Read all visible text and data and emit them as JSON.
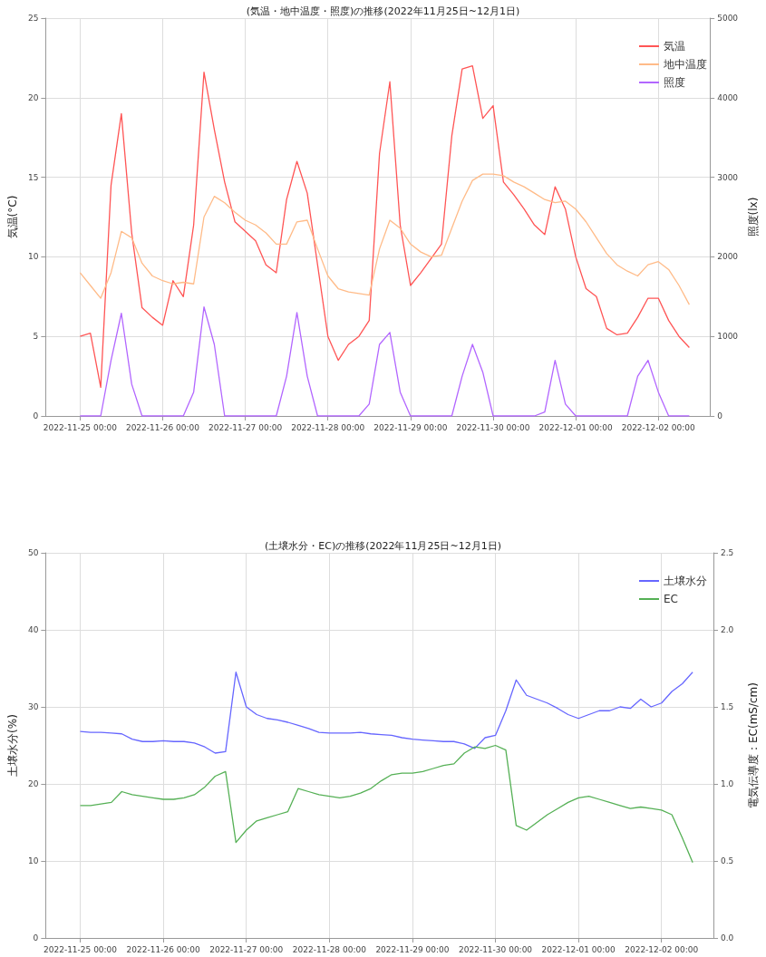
{
  "chart_data": [
    {
      "type": "line",
      "title": "(気温・地中温度・照度)の推移(2022年11月25日~12月1日)",
      "ylabel": "気温(°C)",
      "y2label": "照度(lx)",
      "legend": "top right",
      "grid": true,
      "x": [
        "2022-11-25T00:00",
        "2022-11-25T03:00",
        "2022-11-25T06:00",
        "2022-11-25T09:00",
        "2022-11-25T12:00",
        "2022-11-25T15:00",
        "2022-11-25T18:00",
        "2022-11-25T21:00",
        "2022-11-26T00:00",
        "2022-11-26T03:00",
        "2022-11-26T06:00",
        "2022-11-26T09:00",
        "2022-11-26T12:00",
        "2022-11-26T15:00",
        "2022-11-26T18:00",
        "2022-11-26T21:00",
        "2022-11-27T00:00",
        "2022-11-27T03:00",
        "2022-11-27T06:00",
        "2022-11-27T09:00",
        "2022-11-27T12:00",
        "2022-11-27T15:00",
        "2022-11-27T18:00",
        "2022-11-27T21:00",
        "2022-11-28T00:00",
        "2022-11-28T03:00",
        "2022-11-28T06:00",
        "2022-11-28T09:00",
        "2022-11-28T12:00",
        "2022-11-28T15:00",
        "2022-11-28T18:00",
        "2022-11-28T21:00",
        "2022-11-29T00:00",
        "2022-11-29T03:00",
        "2022-11-29T06:00",
        "2022-11-29T09:00",
        "2022-11-29T12:00",
        "2022-11-29T15:00",
        "2022-11-29T18:00",
        "2022-11-29T21:00",
        "2022-11-30T00:00",
        "2022-11-30T03:00",
        "2022-11-30T06:00",
        "2022-11-30T09:00",
        "2022-11-30T12:00",
        "2022-11-30T15:00",
        "2022-11-30T18:00",
        "2022-11-30T21:00",
        "2022-12-01T00:00",
        "2022-12-01T03:00",
        "2022-12-01T06:00",
        "2022-12-01T09:00",
        "2022-12-01T12:00",
        "2022-12-01T15:00",
        "2022-12-01T18:00",
        "2022-12-01T21:00",
        "2022-12-02T00:00",
        "2022-12-02T03:00",
        "2022-12-02T06:00",
        "2022-12-02T09:00"
      ],
      "xlim": [
        "2022-11-24T14:00",
        "2022-12-02T15:00"
      ],
      "xticks": [
        {
          "value": "2022-11-25T00:00",
          "label": "2022-11-25 00:00"
        },
        {
          "value": "2022-11-26T00:00",
          "label": "2022-11-26 00:00"
        },
        {
          "value": "2022-11-27T00:00",
          "label": "2022-11-27 00:00"
        },
        {
          "value": "2022-11-28T00:00",
          "label": "2022-11-28 00:00"
        },
        {
          "value": "2022-11-29T00:00",
          "label": "2022-11-29 00:00"
        },
        {
          "value": "2022-11-30T00:00",
          "label": "2022-11-30 00:00"
        },
        {
          "value": "2022-12-01T00:00",
          "label": "2022-12-01 00:00"
        },
        {
          "value": "2022-12-02T00:00",
          "label": "2022-12-02 00:00"
        }
      ],
      "ylim": [
        0,
        25
      ],
      "yticks": [
        0,
        5,
        10,
        15,
        20,
        25
      ],
      "y2lim": [
        0,
        5000
      ],
      "y2ticks": [
        0,
        1000,
        2000,
        3000,
        4000,
        5000
      ],
      "series": [
        {
          "name": "気温",
          "color": "#ff5555",
          "values": [
            5.0,
            5.2,
            1.8,
            14.5,
            19.0,
            11.5,
            6.8,
            6.2,
            5.7,
            8.5,
            7.5,
            12.0,
            21.6,
            18.0,
            14.7,
            12.2,
            11.6,
            11.0,
            9.5,
            9.0,
            13.6,
            16.0,
            14.0,
            9.5,
            5.0,
            3.5,
            4.5,
            5.0,
            6.0,
            16.5,
            21.0,
            12.0,
            8.2,
            9.0,
            9.9,
            10.8,
            17.6,
            21.8,
            22.0,
            18.7,
            19.5,
            14.7,
            13.9,
            13.0,
            12.0,
            11.4,
            14.4,
            13.0,
            10.0,
            8.0,
            7.5,
            5.5,
            5.1,
            5.2,
            6.2,
            7.4,
            7.4,
            6.0,
            5.0,
            4.3
          ]
        },
        {
          "name": "地中温度",
          "color": "#ffbb88",
          "values": [
            9.0,
            8.2,
            7.4,
            9.0,
            11.6,
            11.2,
            9.6,
            8.8,
            8.5,
            8.3,
            8.4,
            8.3,
            12.5,
            13.8,
            13.4,
            12.8,
            12.3,
            12.0,
            11.5,
            10.8,
            10.8,
            12.2,
            12.3,
            10.5,
            8.8,
            8.0,
            7.8,
            7.7,
            7.6,
            10.5,
            12.3,
            11.8,
            10.8,
            10.3,
            10.0,
            10.1,
            11.8,
            13.5,
            14.8,
            15.2,
            15.2,
            15.1,
            14.7,
            14.4,
            14.0,
            13.6,
            13.4,
            13.5,
            13.0,
            12.2,
            11.2,
            10.2,
            9.5,
            9.1,
            8.8,
            9.5,
            9.7,
            9.2,
            8.2,
            7.0
          ]
        },
        {
          "name": "照度",
          "color": "#b266ff",
          "axis": "y2",
          "values": [
            0,
            0,
            0,
            700,
            1290,
            400,
            0,
            0,
            0,
            0,
            0,
            300,
            1370,
            900,
            0,
            0,
            0,
            0,
            0,
            0,
            500,
            1300,
            500,
            0,
            0,
            0,
            0,
            0,
            150,
            900,
            1050,
            300,
            0,
            0,
            0,
            0,
            0,
            500,
            900,
            550,
            0,
            0,
            0,
            0,
            0,
            50,
            700,
            150,
            0,
            0,
            0,
            0,
            0,
            0,
            500,
            700,
            300,
            0,
            0,
            0
          ]
        }
      ]
    },
    {
      "type": "line",
      "title": "(土壌水分・EC)の推移(2022年11月25日~12月1日)",
      "ylabel": "土壌水分(%)",
      "y2label": "電気伝導度：EC(mS/cm)",
      "legend": "top right",
      "grid": true,
      "x": [
        "2022-11-25T00:00",
        "2022-11-25T03:00",
        "2022-11-25T06:00",
        "2022-11-25T09:00",
        "2022-11-25T12:00",
        "2022-11-25T15:00",
        "2022-11-25T18:00",
        "2022-11-25T21:00",
        "2022-11-26T00:00",
        "2022-11-26T03:00",
        "2022-11-26T06:00",
        "2022-11-26T09:00",
        "2022-11-26T12:00",
        "2022-11-26T15:00",
        "2022-11-26T18:00",
        "2022-11-26T21:00",
        "2022-11-27T00:00",
        "2022-11-27T03:00",
        "2022-11-27T06:00",
        "2022-11-27T09:00",
        "2022-11-27T12:00",
        "2022-11-27T15:00",
        "2022-11-27T18:00",
        "2022-11-27T21:00",
        "2022-11-28T00:00",
        "2022-11-28T03:00",
        "2022-11-28T06:00",
        "2022-11-28T09:00",
        "2022-11-28T12:00",
        "2022-11-28T15:00",
        "2022-11-28T18:00",
        "2022-11-28T21:00",
        "2022-11-29T00:00",
        "2022-11-29T03:00",
        "2022-11-29T06:00",
        "2022-11-29T09:00",
        "2022-11-29T12:00",
        "2022-11-29T15:00",
        "2022-11-29T18:00",
        "2022-11-29T21:00",
        "2022-11-30T00:00",
        "2022-11-30T03:00",
        "2022-11-30T06:00",
        "2022-11-30T09:00",
        "2022-11-30T12:00",
        "2022-11-30T15:00",
        "2022-11-30T18:00",
        "2022-11-30T21:00",
        "2022-12-01T00:00",
        "2022-12-01T03:00",
        "2022-12-01T06:00",
        "2022-12-01T09:00",
        "2022-12-01T12:00",
        "2022-12-01T15:00",
        "2022-12-01T18:00",
        "2022-12-01T21:00",
        "2022-12-02T00:00",
        "2022-12-02T03:00",
        "2022-12-02T06:00",
        "2022-12-02T09:00"
      ],
      "xlim": [
        "2022-11-24T14:00",
        "2022-12-02T15:00"
      ],
      "xticks": [
        {
          "value": "2022-11-25T00:00",
          "label": "2022-11-25 00:00"
        },
        {
          "value": "2022-11-26T00:00",
          "label": "2022-11-26 00:00"
        },
        {
          "value": "2022-11-27T00:00",
          "label": "2022-11-27 00:00"
        },
        {
          "value": "2022-11-28T00:00",
          "label": "2022-11-28 00:00"
        },
        {
          "value": "2022-11-29T00:00",
          "label": "2022-11-29 00:00"
        },
        {
          "value": "2022-11-30T00:00",
          "label": "2022-11-30 00:00"
        },
        {
          "value": "2022-12-01T00:00",
          "label": "2022-12-01 00:00"
        },
        {
          "value": "2022-12-02T00:00",
          "label": "2022-12-02 00:00"
        }
      ],
      "ylim": [
        0,
        50
      ],
      "yticks": [
        0,
        10,
        20,
        30,
        40,
        50
      ],
      "y2lim": [
        0,
        2.5
      ],
      "y2ticks": [
        {
          "value": 0,
          "label": "0.0"
        },
        0.5,
        {
          "value": 1,
          "label": "1.0"
        },
        1.5,
        {
          "value": 2,
          "label": "2.0"
        },
        2.5
      ],
      "series": [
        {
          "name": "土壌水分",
          "color": "#6666ff",
          "values": [
            26.8,
            26.7,
            26.7,
            26.6,
            26.5,
            25.8,
            25.5,
            25.5,
            25.6,
            25.5,
            25.5,
            25.3,
            24.8,
            24.0,
            24.2,
            34.5,
            30.0,
            29.0,
            28.5,
            28.3,
            28.0,
            27.6,
            27.2,
            26.7,
            26.6,
            26.6,
            26.6,
            26.7,
            26.5,
            26.4,
            26.3,
            26.0,
            25.8,
            25.7,
            25.6,
            25.5,
            25.5,
            25.2,
            24.6,
            26.0,
            26.3,
            29.5,
            33.5,
            31.5,
            31.0,
            30.5,
            29.8,
            29.0,
            28.5,
            29.0,
            29.5,
            29.5,
            30.0,
            29.8,
            31.0,
            30.0,
            30.5,
            32.0,
            33.0,
            34.5
          ]
        },
        {
          "name": "EC",
          "color": "#55b055",
          "axis": "y2",
          "values": [
            0.86,
            0.86,
            0.87,
            0.88,
            0.95,
            0.93,
            0.92,
            0.91,
            0.9,
            0.9,
            0.91,
            0.93,
            0.98,
            1.05,
            1.08,
            0.62,
            0.7,
            0.76,
            0.78,
            0.8,
            0.82,
            0.97,
            0.95,
            0.93,
            0.92,
            0.91,
            0.92,
            0.94,
            0.97,
            1.02,
            1.06,
            1.07,
            1.07,
            1.08,
            1.1,
            1.12,
            1.13,
            1.2,
            1.24,
            1.23,
            1.25,
            1.22,
            0.73,
            0.7,
            0.75,
            0.8,
            0.84,
            0.88,
            0.91,
            0.92,
            0.9,
            0.88,
            0.86,
            0.84,
            0.85,
            0.84,
            0.83,
            0.8,
            0.65,
            0.49
          ]
        }
      ]
    }
  ]
}
